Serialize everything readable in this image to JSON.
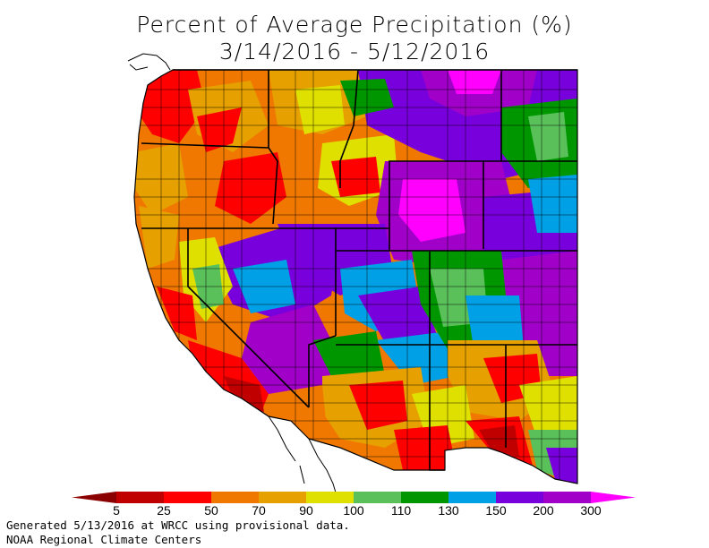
{
  "title": {
    "line1": "Percent of Average Precipitation (%)",
    "line2": "3/14/2016 - 5/12/2016"
  },
  "legend": {
    "ticks": [
      "5",
      "25",
      "50",
      "70",
      "90",
      "100",
      "110",
      "130",
      "150",
      "200",
      "300"
    ],
    "colors": [
      "#8b0000",
      "#c00000",
      "#ff0000",
      "#f07800",
      "#e6a000",
      "#e0e000",
      "#5ac05a",
      "#009600",
      "#00a0e6",
      "#7800dc",
      "#a000c8",
      "#ff00ff"
    ]
  },
  "footer": {
    "line1": "Generated 5/13/2016 at WRCC using provisional data.",
    "line2": "NOAA Regional Climate Centers"
  }
}
